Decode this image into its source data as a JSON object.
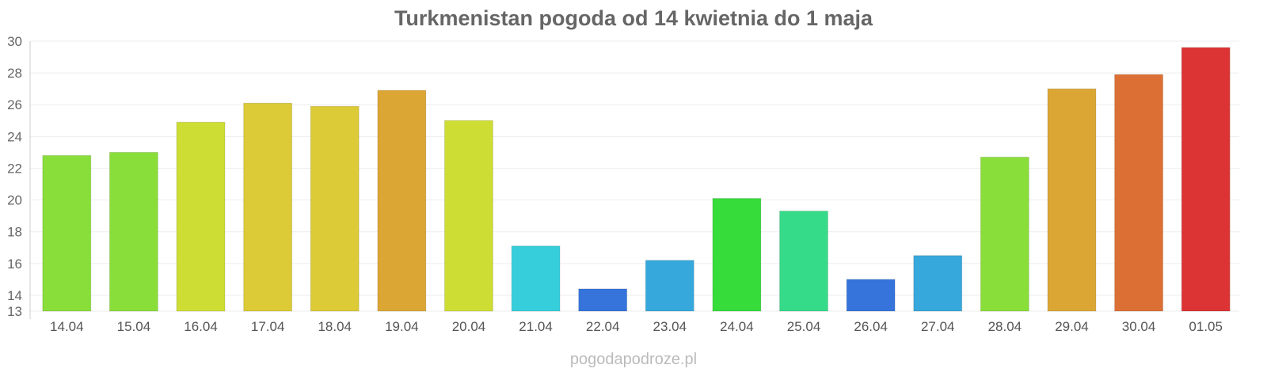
{
  "chart_data": {
    "type": "bar",
    "title": "Turkmenistan pogoda od 14 kwietnia do 1 maja",
    "xlabel": "",
    "ylabel": "",
    "ylim": [
      13,
      30
    ],
    "yticks": [
      13,
      14,
      16,
      18,
      20,
      22,
      24,
      26,
      28,
      30
    ],
    "grid": true,
    "categories": [
      "14.04",
      "15.04",
      "16.04",
      "17.04",
      "18.04",
      "19.04",
      "20.04",
      "21.04",
      "22.04",
      "23.04",
      "24.04",
      "25.04",
      "26.04",
      "27.04",
      "28.04",
      "29.04",
      "30.04",
      "01.05"
    ],
    "values": [
      22.8,
      23.0,
      24.9,
      26.1,
      25.9,
      26.9,
      25.0,
      17.1,
      14.4,
      16.2,
      20.1,
      19.3,
      15.0,
      16.5,
      22.7,
      27.0,
      27.9,
      29.6
    ],
    "colors": [
      "#8ade3a",
      "#8ade3a",
      "#cedd33",
      "#dcca36",
      "#dcca36",
      "#dca634",
      "#cedd33",
      "#36cedb",
      "#3674dc",
      "#36a8db",
      "#36dc3a",
      "#36db8a",
      "#3674dc",
      "#36a8db",
      "#8ade3a",
      "#dca634",
      "#dc7034",
      "#dc3434"
    ]
  },
  "watermark": "pogodapodroze.pl"
}
